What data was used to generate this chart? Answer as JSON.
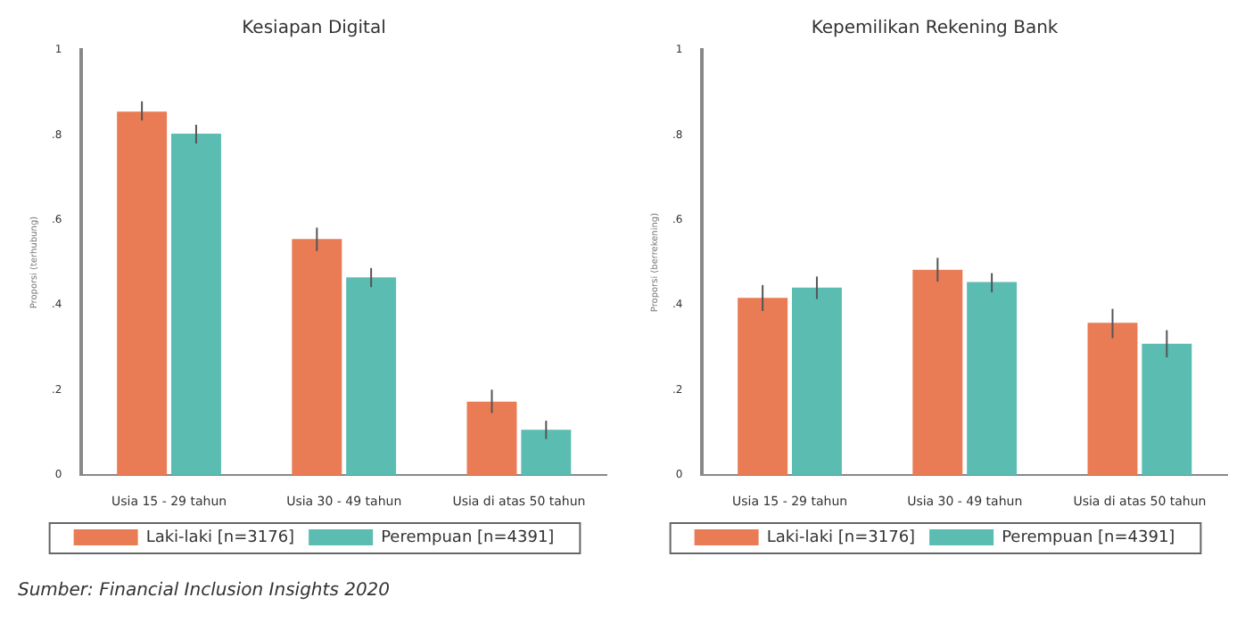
{
  "chart_data": [
    {
      "type": "bar",
      "title": "Kesiapan Digital",
      "ylabel": "Proporsi (terhubung)",
      "categories": [
        "Usia 15 - 29 tahun",
        "Usia 30 - 49 tahun",
        "Usia di atas 50 tahun"
      ],
      "series": [
        {
          "name": "Laki-laki [n=3176]",
          "color": "#e97c55",
          "values": [
            0.855,
            0.555,
            0.173
          ],
          "errors": [
            [
              0.834,
              0.879
            ],
            [
              0.527,
              0.582
            ],
            [
              0.146,
              0.201
            ]
          ]
        },
        {
          "name": "Perempuan [n=4391]",
          "color": "#5bbcb2",
          "values": [
            0.803,
            0.465,
            0.107
          ],
          "errors": [
            [
              0.78,
              0.824
            ],
            [
              0.442,
              0.487
            ],
            [
              0.085,
              0.128
            ]
          ]
        }
      ],
      "ylim": [
        0,
        1
      ],
      "yticks": [
        {
          "value": 0,
          "label": "0"
        },
        {
          "value": 0.2,
          "label": ".2"
        },
        {
          "value": 0.4,
          "label": ".4"
        },
        {
          "value": 0.6,
          "label": ".6"
        },
        {
          "value": 0.8,
          "label": ".8"
        },
        {
          "value": 1,
          "label": "1"
        }
      ],
      "legend": "bottom",
      "annotations": [
        "Sumber: Financial Inclusion Insights 2020"
      ]
    },
    {
      "type": "bar",
      "title": "Kepemilikan Rekening Bank",
      "ylabel": "Proporsi (berrekening)",
      "categories": [
        "Usia 15 - 29 tahun",
        "Usia 30 - 49 tahun",
        "Usia di atas 50 tahun"
      ],
      "series": [
        {
          "name": "Laki-laki [n=3176]",
          "color": "#e97c55",
          "values": [
            0.417,
            0.483,
            0.358
          ],
          "errors": [
            [
              0.386,
              0.447
            ],
            [
              0.455,
              0.511
            ],
            [
              0.322,
              0.391
            ]
          ]
        },
        {
          "name": "Perempuan [n=4391]",
          "color": "#5bbcb2",
          "values": [
            0.441,
            0.454,
            0.309
          ],
          "errors": [
            [
              0.414,
              0.467
            ],
            [
              0.43,
              0.475
            ],
            [
              0.277,
              0.341
            ]
          ]
        }
      ],
      "ylim": [
        0,
        1
      ],
      "yticks": [
        {
          "value": 0,
          "label": "0"
        },
        {
          "value": 0.2,
          "label": ".2"
        },
        {
          "value": 0.4,
          "label": ".4"
        },
        {
          "value": 0.6,
          "label": ".6"
        },
        {
          "value": 0.8,
          "label": ".8"
        },
        {
          "value": 1,
          "label": "1"
        }
      ],
      "legend": "bottom"
    }
  ]
}
